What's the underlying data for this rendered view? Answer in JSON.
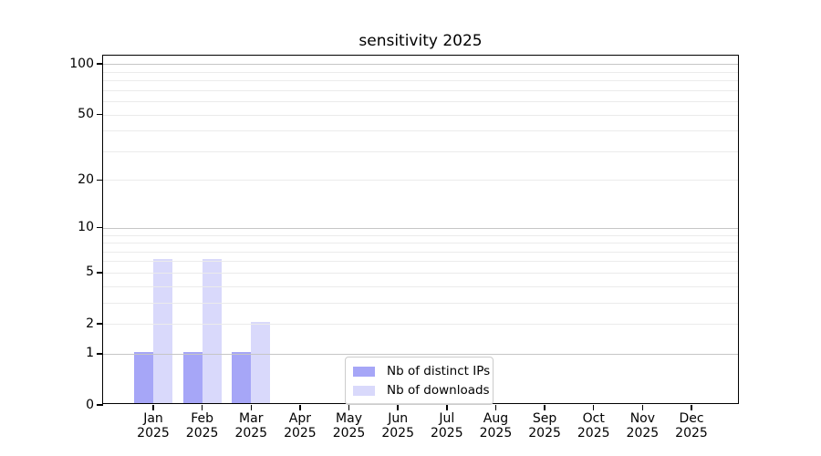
{
  "chart_data": {
    "type": "bar",
    "title": "sensitivity 2025",
    "categories": [
      "Jan",
      "Feb",
      "Mar",
      "Apr",
      "May",
      "Jun",
      "Jul",
      "Aug",
      "Sep",
      "Oct",
      "Nov",
      "Dec"
    ],
    "x_sub_label": "2025",
    "series": [
      {
        "name": "Nb of distinct IPs",
        "color": "#a6a6f7",
        "values": [
          1,
          1,
          1,
          0,
          0,
          0,
          0,
          0,
          0,
          0,
          0,
          0
        ]
      },
      {
        "name": "Nb of downloads",
        "color": "#d9d9fb",
        "values": [
          6,
          6,
          2,
          0,
          0,
          0,
          0,
          0,
          0,
          0,
          0,
          0
        ]
      }
    ],
    "yscale": "log1p",
    "ylim": [
      0,
      113
    ],
    "yticks": [
      {
        "label": "0",
        "value": 0
      },
      {
        "label": "1",
        "value": 1
      },
      {
        "label": "2",
        "value": 2
      },
      {
        "label": "5",
        "value": 5
      },
      {
        "label": "10",
        "value": 10
      },
      {
        "label": "20",
        "value": 20
      },
      {
        "label": "50",
        "value": 50
      },
      {
        "label": "100",
        "value": 100
      }
    ],
    "grid": {
      "major_values": [
        1,
        10,
        100
      ],
      "minor_values": [
        2,
        3,
        4,
        5,
        6,
        7,
        8,
        9,
        20,
        30,
        40,
        50,
        60,
        70,
        80,
        90
      ]
    },
    "legend_position": "lower-center"
  }
}
